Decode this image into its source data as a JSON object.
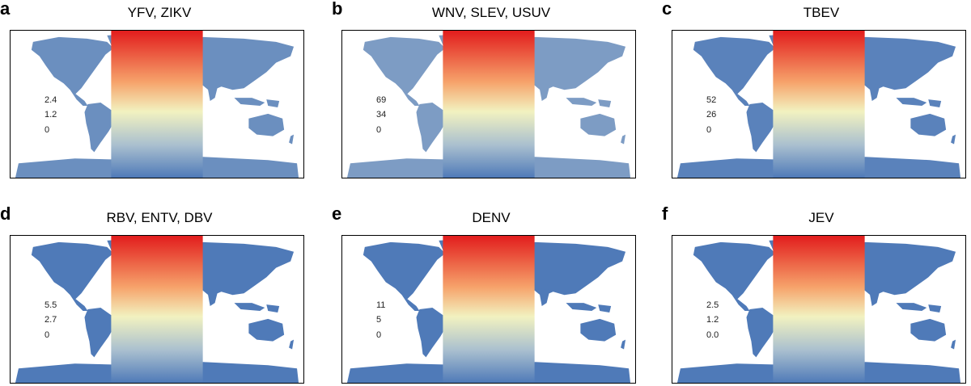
{
  "colors": {
    "low": "#4f7ab8",
    "mid": "#f2f2c0",
    "high": "#e21d1d",
    "frame": "#000000"
  },
  "panels": [
    {
      "letter": "a",
      "title": "YFV, ZIKV",
      "legend": {
        "max": "2.4",
        "mid": "1.2",
        "min": "0"
      },
      "hotspots": "tropics-asia"
    },
    {
      "letter": "b",
      "title": "WNV, SLEV, USUV",
      "legend": {
        "max": "69",
        "mid": "34",
        "min": "0"
      },
      "hotspots": "north-america-eurasia"
    },
    {
      "letter": "c",
      "title": "TBEV",
      "legend": {
        "max": "52",
        "mid": "26",
        "min": "0"
      },
      "hotspots": "russia"
    },
    {
      "letter": "d",
      "title": "RBV, ENTV, DBV",
      "legend": {
        "max": "5.5",
        "mid": "2.7",
        "min": "0"
      },
      "hotspots": "south-america"
    },
    {
      "letter": "e",
      "title": "DENV",
      "legend": {
        "max": "11",
        "mid": "5",
        "min": "0"
      },
      "hotspots": "amazon"
    },
    {
      "letter": "f",
      "title": "JEV",
      "legend": {
        "max": "2.5",
        "mid": "1.2",
        "min": "0.0"
      },
      "hotspots": "europe-asia"
    }
  ]
}
